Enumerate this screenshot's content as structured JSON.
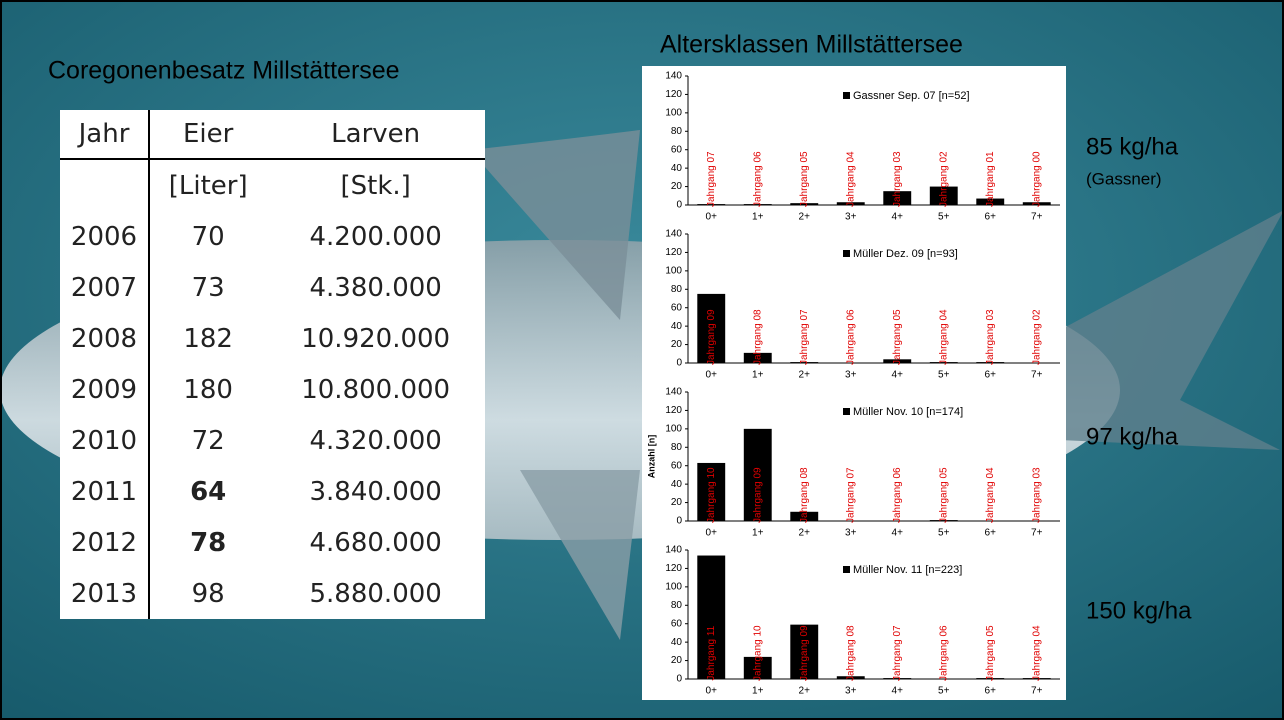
{
  "slide": {
    "left_title": "Coregonenbesatz Millstättersee",
    "right_title": "Altersklassen Millstättersee",
    "notes": [
      "85 kg/ha",
      "(Gassner)",
      "97 kg/ha",
      "150 kg/ha"
    ]
  },
  "table": {
    "header": [
      "Jahr",
      "Eier",
      "Larven"
    ],
    "units": [
      "[Liter]",
      "[Stk.]"
    ],
    "rows": [
      [
        "2006",
        "70",
        "4.200.000"
      ],
      [
        "2007",
        "73",
        "4.380.000"
      ],
      [
        "2008",
        "182",
        "10.920.000"
      ],
      [
        "2009",
        "180",
        "10.800.000"
      ],
      [
        "2010",
        "72",
        "4.320.000"
      ],
      [
        "2011",
        "64",
        "3.840.000"
      ],
      [
        "2012",
        "78",
        "4.680.000"
      ],
      [
        "2013",
        "98",
        "5.880.000"
      ]
    ]
  },
  "chart_data": [
    {
      "type": "bar",
      "categories": [
        "0+",
        "1+",
        "2+",
        "3+",
        "4+",
        "5+",
        "6+",
        "7+"
      ],
      "bar_labels": [
        "Jahrgang 07",
        "Jahrgang 06",
        "Jahrgang 05",
        "Jahrgang 04",
        "Jahrgang 03",
        "Jahrgang 02",
        "Jahrgang 01",
        "Jahrgang 00"
      ],
      "series": [
        {
          "name": "Gassner Sep. 07 [n=52]",
          "color": "#000000",
          "values": [
            1,
            1,
            2,
            3,
            15,
            20,
            7,
            3
          ]
        }
      ],
      "ylim": [
        0,
        140
      ],
      "yticks": [
        0,
        20,
        40,
        60,
        80,
        100,
        120,
        140
      ]
    },
    {
      "type": "bar",
      "categories": [
        "0+",
        "1+",
        "2+",
        "3+",
        "4+",
        "5+",
        "6+",
        "7+"
      ],
      "bar_labels": [
        "Jahrgang 09",
        "Jahrgang 08",
        "Jahrgang 07",
        "Jahrgang 06",
        "Jahrgang 05",
        "Jahrgang 04",
        "Jahrgang 03",
        "Jahrgang 02"
      ],
      "series": [
        {
          "name": "Müller Dez. 09  [n=93]",
          "color": "#000000",
          "values": [
            75,
            11,
            1,
            0,
            4,
            1,
            1,
            0
          ]
        }
      ],
      "ylim": [
        0,
        140
      ],
      "yticks": [
        0,
        20,
        40,
        60,
        80,
        100,
        120,
        140
      ]
    },
    {
      "type": "bar",
      "y_label": "Anzahl [n]",
      "categories": [
        "0+",
        "1+",
        "2+",
        "3+",
        "4+",
        "5+",
        "6+",
        "7+"
      ],
      "bar_labels": [
        "Jahrgang 10",
        "Jahrgang 09",
        "Jahrgang 08",
        "Jahrgang 07",
        "Jahrgang 06",
        "Jahrgang 05",
        "Jahrgang 04",
        "Jahrgang 03"
      ],
      "series": [
        {
          "name": "Müller Nov. 10 [n=174]",
          "color": "#000000",
          "values": [
            63,
            100,
            10,
            0,
            0,
            1,
            0,
            0
          ]
        }
      ],
      "ylim": [
        0,
        140
      ],
      "yticks": [
        0,
        20,
        40,
        60,
        80,
        100,
        120,
        140
      ]
    },
    {
      "type": "bar",
      "categories": [
        "0+",
        "1+",
        "2+",
        "3+",
        "4+",
        "5+",
        "6+",
        "7+"
      ],
      "bar_labels": [
        "Jahrgang 11",
        "Jahrgang 10",
        "Jahrgang 09",
        "Jahrgang 08",
        "Jahrgang 07",
        "Jahrgang 06",
        "Jahrgang 05",
        "Jahrgang 04"
      ],
      "series": [
        {
          "name": "Müller Nov. 11 [n=223]",
          "color": "#000000",
          "values": [
            134,
            24,
            59,
            3,
            1,
            0,
            1,
            1
          ]
        }
      ],
      "ylim": [
        0,
        140
      ],
      "yticks": [
        0,
        20,
        40,
        60,
        80,
        100,
        120,
        140
      ]
    }
  ]
}
